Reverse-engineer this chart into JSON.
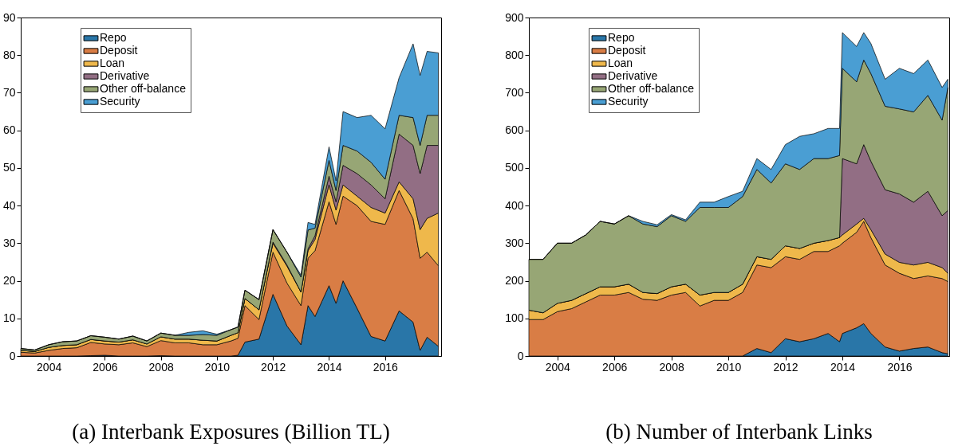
{
  "chart_data": [
    {
      "type": "area",
      "stacked": true,
      "title": "(a) Interbank Exposures (Billion TL)",
      "legend": "top left",
      "grid": false,
      "x": [
        2003,
        2003.5,
        2004,
        2004.5,
        2005,
        2005.5,
        2006,
        2006.5,
        2007,
        2007.5,
        2008,
        2008.5,
        2009,
        2009.5,
        2010,
        2010.5,
        2010.75,
        2011,
        2011.5,
        2012,
        2012.5,
        2013,
        2013.25,
        2013.5,
        2014,
        2014.25,
        2014.5,
        2015,
        2015.5,
        2016,
        2016.5,
        2017,
        2017.25,
        2017.5,
        2017.9
      ],
      "xlim": [
        2003,
        2018
      ],
      "xticks": [
        2004,
        2006,
        2008,
        2010,
        2012,
        2014,
        2016
      ],
      "ylim": [
        0,
        90
      ],
      "yticks": [
        0,
        10,
        20,
        30,
        40,
        50,
        60,
        70,
        80,
        90
      ],
      "series": [
        {
          "name": "Repo",
          "color": "#2976a8",
          "values": [
            0,
            0,
            0,
            0,
            0,
            0.1,
            0.2,
            0,
            0,
            0,
            0.1,
            0,
            0,
            0,
            0,
            0,
            0.2,
            3.7,
            4.5,
            16.4,
            8,
            3,
            13.4,
            10.5,
            18.7,
            14,
            20,
            12.7,
            5.2,
            4,
            12,
            9,
            1.5,
            5,
            2.6
          ]
        },
        {
          "name": "Deposit",
          "color": "#d97d45",
          "values": [
            1,
            0.8,
            1.5,
            2,
            2.2,
            3.5,
            3,
            3,
            3.5,
            2.5,
            4,
            3.5,
            3.5,
            3,
            3,
            4,
            4.5,
            9.7,
            5.2,
            11.2,
            11.4,
            10.4,
            12.6,
            17.5,
            22.3,
            21,
            22.5,
            27.3,
            30.6,
            31,
            32,
            27.5,
            24.5,
            22.6,
            21.4
          ]
        },
        {
          "name": "Loan",
          "color": "#efb84b",
          "values": [
            0.5,
            0.4,
            0.8,
            0.8,
            0.8,
            0.8,
            0.8,
            0.7,
            0.8,
            0.7,
            1,
            1,
            1,
            1.2,
            1,
            1.5,
            1.5,
            1.9,
            2.6,
            2.4,
            4.5,
            3.6,
            2,
            3,
            4.5,
            3.8,
            3,
            2.5,
            3.7,
            3,
            2.3,
            5.3,
            7.6,
            9,
            14
          ]
        },
        {
          "name": "Derivative",
          "color": "#926e84",
          "values": [
            0,
            0,
            0,
            0,
            0,
            0,
            0,
            0,
            0,
            0,
            0,
            0,
            0,
            0,
            0,
            0,
            0,
            0,
            0,
            0.3,
            0.3,
            0,
            0.5,
            1,
            2.3,
            2.2,
            5.2,
            6,
            6,
            3.8,
            12.7,
            14.2,
            14.9,
            19.4,
            18
          ]
        },
        {
          "name": "Other off-balance",
          "color": "#97a675",
          "values": [
            0.5,
            0.4,
            0.7,
            1,
            1,
            1,
            1,
            0.8,
            1,
            0.8,
            1,
            1,
            1,
            1.5,
            1.5,
            1.5,
            1.5,
            2.2,
            2.7,
            3.3,
            3.4,
            4,
            5,
            2,
            4.2,
            3,
            5.3,
            6,
            6,
            5.2,
            5,
            7.4,
            7.5,
            8,
            8
          ]
        },
        {
          "name": "Security",
          "color": "#4a9ed3",
          "values": [
            0,
            0,
            0,
            0,
            0,
            0,
            0,
            0,
            0,
            0,
            0,
            0,
            0.8,
            1,
            0.3,
            0,
            0,
            0,
            0,
            0,
            0,
            0.5,
            2,
            1,
            3.6,
            2.6,
            9,
            8.9,
            12.5,
            13.4,
            10,
            19.6,
            18.6,
            17,
            16.6
          ]
        }
      ]
    },
    {
      "type": "area",
      "stacked": true,
      "title": "(b) Number of Interbank Links",
      "legend": "top left",
      "grid": false,
      "x": [
        2003,
        2003.5,
        2004,
        2004.5,
        2005,
        2005.5,
        2006,
        2006.5,
        2007,
        2007.5,
        2008,
        2008.5,
        2009,
        2009.5,
        2010,
        2010.5,
        2011,
        2011.5,
        2012,
        2012.5,
        2013,
        2013.5,
        2013.9,
        2014,
        2014.5,
        2014.75,
        2015,
        2015.5,
        2016,
        2016.5,
        2017,
        2017.5,
        2017.7
      ],
      "xlim": [
        2003,
        2017.75
      ],
      "xticks": [
        2004,
        2006,
        2008,
        2010,
        2012,
        2014,
        2016
      ],
      "ylim": [
        0,
        900
      ],
      "yticks": [
        0,
        100,
        200,
        300,
        400,
        500,
        600,
        700,
        800,
        900
      ],
      "series": [
        {
          "name": "Repo",
          "color": "#2976a8",
          "values": [
            0,
            0,
            0,
            0,
            0,
            0,
            0,
            0,
            0,
            0,
            0,
            0,
            0,
            0,
            0,
            0,
            20,
            9,
            46,
            38,
            46,
            60,
            38,
            60,
            75,
            86,
            60,
            24,
            13,
            20,
            24,
            9,
            6
          ]
        },
        {
          "name": "Deposit",
          "color": "#d97d45",
          "values": [
            97,
            97,
            118,
            126,
            144,
            162,
            162,
            169,
            151,
            148,
            162,
            169,
            133,
            148,
            148,
            169,
            222,
            226,
            218,
            219,
            232,
            218,
            255,
            240,
            254,
            272,
            255,
            218,
            207,
            186,
            189,
            197,
            192
          ]
        },
        {
          "name": "Loan",
          "color": "#efb84b",
          "values": [
            25,
            18,
            22,
            22,
            22,
            22,
            22,
            22,
            18,
            18,
            22,
            22,
            29,
            21,
            21,
            22,
            22,
            22,
            29,
            29,
            22,
            29,
            22,
            22,
            22,
            8,
            21,
            29,
            29,
            36,
            36,
            29,
            22
          ]
        },
        {
          "name": "Derivative",
          "color": "#926e84",
          "values": [
            0,
            0,
            0,
            0,
            0,
            0,
            0,
            0,
            0,
            0,
            0,
            0,
            0,
            0,
            0,
            0,
            0,
            0,
            0,
            0,
            0,
            0,
            0,
            203,
            160,
            196,
            182,
            171,
            182,
            167,
            189,
            138,
            167
          ]
        },
        {
          "name": "Other off-balance",
          "color": "#97a675",
          "values": [
            135,
            142,
            160,
            152,
            156,
            174,
            167,
            182,
            182,
            178,
            189,
            167,
            233,
            226,
            226,
            233,
            232,
            203,
            218,
            210,
            225,
            218,
            218,
            240,
            218,
            225,
            233,
            222,
            226,
            240,
            255,
            254,
            327
          ]
        },
        {
          "name": "Security",
          "color": "#4a9ed3",
          "values": [
            0,
            0,
            0,
            0,
            0,
            0,
            0,
            0,
            7,
            5,
            3,
            4,
            14,
            14,
            29,
            14,
            29,
            36,
            51,
            88,
            66,
            80,
            72,
            95,
            94,
            73,
            80,
            72,
            108,
            102,
            94,
            87,
            22
          ]
        }
      ]
    }
  ]
}
